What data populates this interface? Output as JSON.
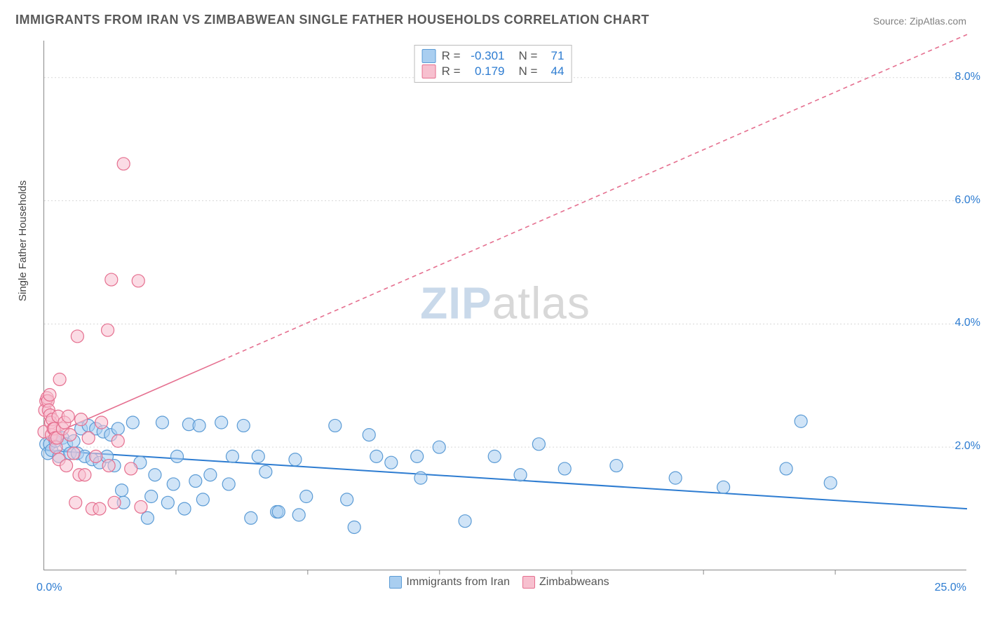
{
  "title": "IMMIGRANTS FROM IRAN VS ZIMBABWEAN SINGLE FATHER HOUSEHOLDS CORRELATION CHART",
  "source_label": "Source: ZipAtlas.com",
  "ylabel": "Single Father Households",
  "watermark_bold": "ZIP",
  "watermark_rest": "atlas",
  "plot": {
    "type": "scatter",
    "background_color": "#ffffff",
    "marker_radius": 9,
    "marker_opacity": 0.55,
    "marker_stroke_width": 1.2,
    "grid_color": "#d8d8d8",
    "grid_dash": "2,3",
    "axis_color": "#888888",
    "font_family": "Arial",
    "title_fontsize": 18,
    "title_color": "#5a5a5a",
    "label_fontsize": 15,
    "label_color": "#444444",
    "tick_fontsize": 16,
    "tick_color": "#2d7cd1",
    "xlim": [
      0,
      25
    ],
    "ylim": [
      0,
      8.6
    ],
    "y_gridlines": [
      2,
      4,
      6,
      8
    ],
    "x_minor_ticks": [
      3.57,
      7.14,
      10.71,
      14.29,
      17.86,
      21.43
    ],
    "x_tick_labels": {
      "min": "0.0%",
      "max": "25.0%"
    },
    "y_tick_labels": [
      "2.0%",
      "4.0%",
      "6.0%",
      "8.0%"
    ]
  },
  "series": [
    {
      "name": "Immigrants from Iran",
      "fill_color": "#a9cef0",
      "stroke_color": "#5b9bd5",
      "R": "-0.301",
      "N": "71",
      "trend": {
        "x1": 0,
        "y1": 1.95,
        "x2": 25,
        "y2": 1.0,
        "solid_until_x": 25,
        "stroke": "#2d7cd1",
        "width": 2
      },
      "points": [
        [
          0.05,
          2.05
        ],
        [
          0.1,
          1.9
        ],
        [
          0.15,
          2.05
        ],
        [
          0.2,
          1.95
        ],
        [
          0.3,
          2.1
        ],
        [
          0.4,
          1.85
        ],
        [
          0.5,
          2.15
        ],
        [
          0.6,
          2.05
        ],
        [
          0.7,
          1.9
        ],
        [
          0.8,
          2.1
        ],
        [
          0.9,
          1.9
        ],
        [
          1.0,
          2.3
        ],
        [
          1.1,
          1.85
        ],
        [
          1.2,
          2.35
        ],
        [
          1.3,
          1.8
        ],
        [
          1.4,
          2.3
        ],
        [
          1.5,
          1.75
        ],
        [
          1.6,
          2.25
        ],
        [
          1.7,
          1.85
        ],
        [
          1.8,
          2.2
        ],
        [
          1.9,
          1.7
        ],
        [
          2.0,
          2.3
        ],
        [
          2.1,
          1.3
        ],
        [
          2.15,
          1.1
        ],
        [
          2.4,
          2.4
        ],
        [
          2.6,
          1.75
        ],
        [
          2.8,
          0.85
        ],
        [
          2.9,
          1.2
        ],
        [
          3.0,
          1.55
        ],
        [
          3.2,
          2.4
        ],
        [
          3.35,
          1.1
        ],
        [
          3.5,
          1.4
        ],
        [
          3.6,
          1.85
        ],
        [
          3.8,
          1.0
        ],
        [
          3.92,
          2.37
        ],
        [
          4.1,
          1.45
        ],
        [
          4.2,
          2.35
        ],
        [
          4.3,
          1.15
        ],
        [
          4.5,
          1.55
        ],
        [
          4.8,
          2.4
        ],
        [
          5.0,
          1.4
        ],
        [
          5.1,
          1.85
        ],
        [
          5.4,
          2.35
        ],
        [
          5.6,
          0.85
        ],
        [
          5.8,
          1.85
        ],
        [
          6.0,
          1.6
        ],
        [
          6.3,
          0.95
        ],
        [
          6.35,
          0.95
        ],
        [
          6.8,
          1.8
        ],
        [
          6.9,
          0.9
        ],
        [
          7.1,
          1.2
        ],
        [
          7.88,
          2.35
        ],
        [
          8.2,
          1.15
        ],
        [
          8.4,
          0.7
        ],
        [
          8.8,
          2.2
        ],
        [
          9.0,
          1.85
        ],
        [
          9.4,
          1.75
        ],
        [
          10.1,
          1.85
        ],
        [
          10.2,
          1.5
        ],
        [
          10.7,
          2.0
        ],
        [
          11.4,
          0.8
        ],
        [
          12.2,
          1.85
        ],
        [
          12.9,
          1.55
        ],
        [
          13.4,
          2.05
        ],
        [
          14.1,
          1.65
        ],
        [
          15.5,
          1.7
        ],
        [
          17.1,
          1.5
        ],
        [
          18.4,
          1.35
        ],
        [
          20.1,
          1.65
        ],
        [
          20.5,
          2.42
        ],
        [
          21.3,
          1.42
        ]
      ]
    },
    {
      "name": "Zimbabweans",
      "fill_color": "#f7c0cf",
      "stroke_color": "#e56f8f",
      "R": "0.179",
      "N": "44",
      "trend": {
        "x1": 0,
        "y1": 2.15,
        "x2": 25,
        "y2": 8.7,
        "solid_until_x": 4.8,
        "stroke": "#e56f8f",
        "width": 1.6
      },
      "points": [
        [
          0.0,
          2.25
        ],
        [
          0.02,
          2.6
        ],
        [
          0.05,
          2.75
        ],
        [
          0.08,
          2.8
        ],
        [
          0.1,
          2.75
        ],
        [
          0.12,
          2.6
        ],
        [
          0.15,
          2.85
        ],
        [
          0.16,
          2.52
        ],
        [
          0.18,
          2.4
        ],
        [
          0.2,
          2.2
        ],
        [
          0.22,
          2.45
        ],
        [
          0.25,
          2.3
        ],
        [
          0.28,
          2.3
        ],
        [
          0.3,
          2.15
        ],
        [
          0.32,
          2.0
        ],
        [
          0.35,
          2.15
        ],
        [
          0.38,
          2.5
        ],
        [
          0.4,
          1.8
        ],
        [
          0.42,
          3.1
        ],
        [
          0.5,
          2.3
        ],
        [
          0.55,
          2.4
        ],
        [
          0.6,
          1.7
        ],
        [
          0.65,
          2.5
        ],
        [
          0.7,
          2.2
        ],
        [
          0.8,
          1.9
        ],
        [
          0.85,
          1.1
        ],
        [
          0.9,
          3.8
        ],
        [
          0.95,
          1.55
        ],
        [
          1.0,
          2.45
        ],
        [
          1.1,
          1.55
        ],
        [
          1.2,
          2.15
        ],
        [
          1.3,
          1.0
        ],
        [
          1.4,
          1.85
        ],
        [
          1.5,
          1.0
        ],
        [
          1.55,
          2.4
        ],
        [
          1.72,
          3.9
        ],
        [
          1.75,
          1.7
        ],
        [
          1.82,
          4.72
        ],
        [
          1.9,
          1.1
        ],
        [
          2.0,
          2.1
        ],
        [
          2.15,
          6.6
        ],
        [
          2.35,
          1.65
        ],
        [
          2.55,
          4.7
        ],
        [
          2.62,
          1.03
        ]
      ]
    }
  ],
  "legend_bottom": [
    {
      "label": "Immigrants from Iran",
      "fill": "#a9cef0",
      "stroke": "#5b9bd5"
    },
    {
      "label": "Zimbabweans",
      "fill": "#f7c0cf",
      "stroke": "#e56f8f"
    }
  ]
}
